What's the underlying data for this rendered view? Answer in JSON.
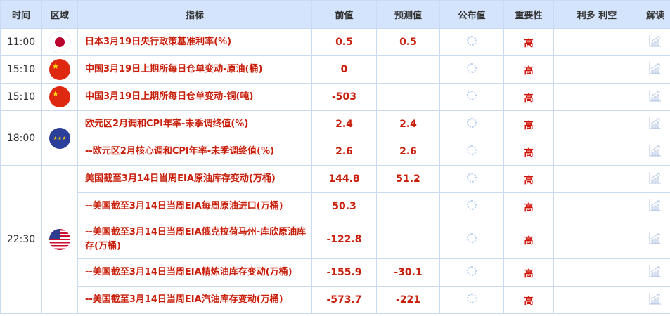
{
  "headers": [
    "时间",
    "区域",
    "指标",
    "前值",
    "预测值",
    "公布值",
    "重要性",
    "利多 利空",
    "解读"
  ],
  "groups": [
    {
      "time": "11:00",
      "flag": "japan-flag",
      "rows": [
        {
          "indicator": "日本3月19日央行政策基准利率(%)",
          "previous": "0.5",
          "forecast": "0.5",
          "importance": "高"
        }
      ]
    },
    {
      "time": "15:10",
      "flag": "china-flag",
      "rows": [
        {
          "indicator": "中国3月19日上期所每日仓单变动-原油(桶)",
          "previous": "0",
          "forecast": "",
          "importance": "高"
        }
      ]
    },
    {
      "time": "15:10",
      "flag": "china-flag",
      "rows": [
        {
          "indicator": "中国3月19日上期所每日仓单变动-铜(吨)",
          "previous": "-503",
          "forecast": "",
          "importance": "高"
        }
      ]
    },
    {
      "time": "18:00",
      "flag": "eu-flag",
      "rows": [
        {
          "indicator": "欧元区2月调和CPI年率-未季调终值(%)",
          "previous": "2.4",
          "forecast": "2.4",
          "importance": "高"
        },
        {
          "indicator": "--欧元区2月核心调和CPI年率-未季调终值(%)",
          "previous": "2.6",
          "forecast": "2.6",
          "importance": "高"
        }
      ]
    },
    {
      "time": "22:30",
      "flag": "us-flag",
      "rows": [
        {
          "indicator": "美国截至3月14日当周EIA原油库存变动(万桶)",
          "previous": "144.8",
          "forecast": "51.2",
          "importance": "高"
        },
        {
          "indicator": "--美国截至3月14日当周EIA每周原油进口(万桶)",
          "previous": "50.3",
          "forecast": "",
          "importance": "高"
        },
        {
          "indicator": "--美国截至3月14日当周EIA俄克拉荷马州-库欣原油库存(万桶)",
          "previous": "-122.8",
          "forecast": "",
          "importance": "高"
        },
        {
          "indicator": "--美国截至3月14日当周EIA精炼油库存变动(万桶)",
          "previous": "-155.9",
          "forecast": "-30.1",
          "importance": "高"
        },
        {
          "indicator": "--美国截至3月14日当周EIA汽油库存变动(万桶)",
          "previous": "-573.7",
          "forecast": "-221",
          "importance": "高"
        }
      ]
    }
  ],
  "colors": {
    "header_bg": "#d3e4fc",
    "border": "#c9dbf2",
    "accent_red": "#c81e0a"
  }
}
